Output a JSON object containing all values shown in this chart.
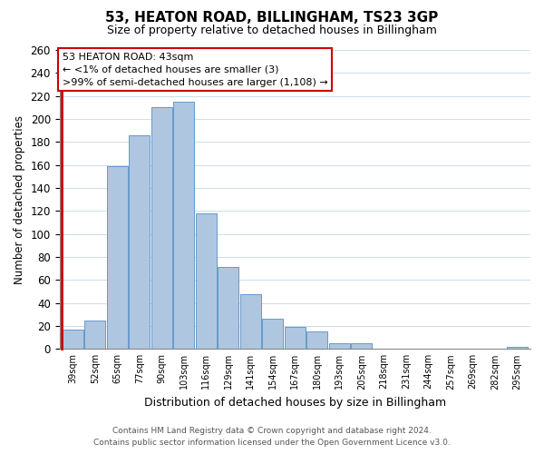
{
  "title": "53, HEATON ROAD, BILLINGHAM, TS23 3GP",
  "subtitle": "Size of property relative to detached houses in Billingham",
  "xlabel": "Distribution of detached houses by size in Billingham",
  "ylabel": "Number of detached properties",
  "bar_color": "#aec6e0",
  "bar_edge_color": "#6699cc",
  "categories": [
    "39sqm",
    "52sqm",
    "65sqm",
    "77sqm",
    "90sqm",
    "103sqm",
    "116sqm",
    "129sqm",
    "141sqm",
    "154sqm",
    "167sqm",
    "180sqm",
    "193sqm",
    "205sqm",
    "218sqm",
    "231sqm",
    "244sqm",
    "257sqm",
    "269sqm",
    "282sqm",
    "295sqm"
  ],
  "values": [
    17,
    25,
    159,
    186,
    210,
    215,
    118,
    71,
    48,
    26,
    19,
    15,
    5,
    5,
    0,
    0,
    0,
    0,
    0,
    0,
    2
  ],
  "ylim": [
    0,
    260
  ],
  "yticks": [
    0,
    20,
    40,
    60,
    80,
    100,
    120,
    140,
    160,
    180,
    200,
    220,
    240,
    260
  ],
  "annotation_title": "53 HEATON ROAD: 43sqm",
  "annotation_line1": "← <1% of detached houses are smaller (3)",
  "annotation_line2": ">99% of semi-detached houses are larger (1,108) →",
  "annotation_box_color": "#ffffff",
  "annotation_box_edge_color": "#cc0000",
  "marker_color": "#cc0000",
  "footer1": "Contains HM Land Registry data © Crown copyright and database right 2024.",
  "footer2": "Contains public sector information licensed under the Open Government Licence v3.0.",
  "background_color": "#ffffff",
  "grid_color": "#ccdde8"
}
